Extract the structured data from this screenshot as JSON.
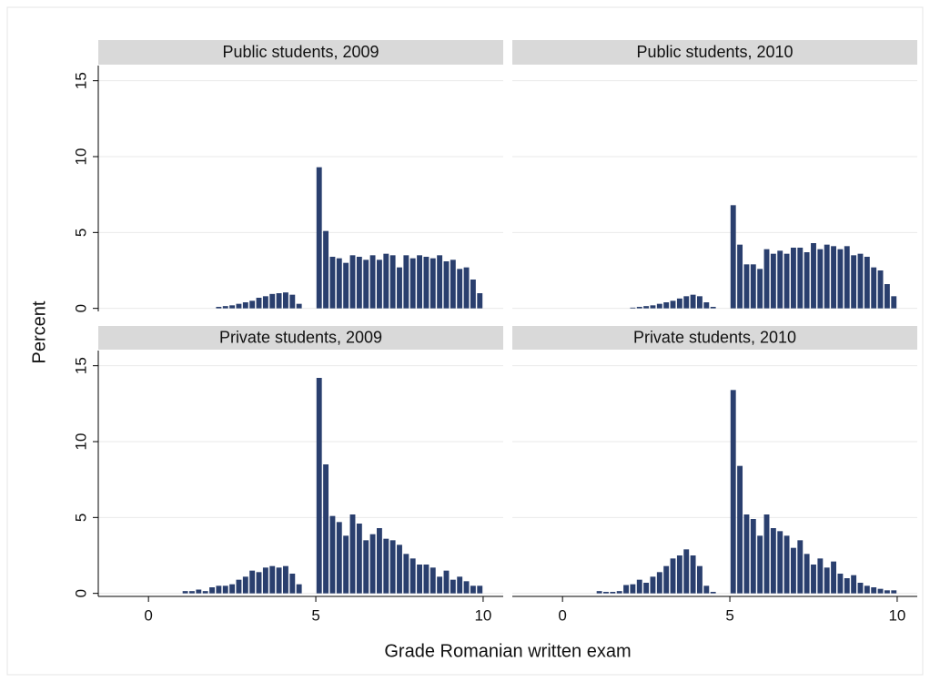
{
  "ylabel": "Percent",
  "xlabel": "Grade Romanian written exam",
  "chart_data": [
    {
      "type": "histogram",
      "title": "Public students, 2009",
      "color": "#2a3f6e",
      "bins": [
        1.0,
        1.2,
        1.4,
        1.6,
        1.8,
        2.0,
        2.2,
        2.4,
        2.6,
        2.8,
        3.0,
        3.2,
        3.4,
        3.6,
        3.8,
        4.0,
        4.2,
        4.4,
        4.6,
        4.8,
        5.0,
        5.2,
        5.4,
        5.6,
        5.8,
        6.0,
        6.2,
        6.4,
        6.6,
        6.8,
        7.0,
        7.2,
        7.4,
        7.6,
        7.8,
        8.0,
        8.2,
        8.4,
        8.6,
        8.8,
        9.0,
        9.2,
        9.4,
        9.6,
        9.8,
        10.0
      ],
      "values": [
        0,
        0,
        0,
        0,
        0,
        0.1,
        0.15,
        0.2,
        0.3,
        0.4,
        0.5,
        0.7,
        0.8,
        0.95,
        1.0,
        1.05,
        0.9,
        0.3,
        0,
        0,
        9.3,
        5.1,
        3.4,
        3.3,
        3.0,
        3.5,
        3.4,
        3.2,
        3.5,
        3.2,
        3.6,
        3.5,
        2.7,
        3.5,
        3.3,
        3.5,
        3.4,
        3.3,
        3.5,
        3.1,
        3.2,
        2.6,
        2.7,
        1.9,
        1.0
      ],
      "xlim": [
        -1.5,
        10.6
      ],
      "ylim": [
        -0.2,
        16
      ],
      "yticks": [
        0,
        5,
        10,
        15
      ],
      "ytick_labels": true,
      "grid": true
    },
    {
      "type": "histogram",
      "title": "Public students, 2010",
      "color": "#2a3f6e",
      "bins": [
        1.0,
        1.2,
        1.4,
        1.6,
        1.8,
        2.0,
        2.2,
        2.4,
        2.6,
        2.8,
        3.0,
        3.2,
        3.4,
        3.6,
        3.8,
        4.0,
        4.2,
        4.4,
        4.6,
        4.8,
        5.0,
        5.2,
        5.4,
        5.6,
        5.8,
        6.0,
        6.2,
        6.4,
        6.6,
        6.8,
        7.0,
        7.2,
        7.4,
        7.6,
        7.8,
        8.0,
        8.2,
        8.4,
        8.6,
        8.8,
        9.0,
        9.2,
        9.4,
        9.6,
        9.8,
        10.0
      ],
      "values": [
        0,
        0,
        0,
        0,
        0,
        0.05,
        0.1,
        0.15,
        0.2,
        0.3,
        0.4,
        0.5,
        0.65,
        0.8,
        0.9,
        0.8,
        0.4,
        0.1,
        0,
        0,
        6.8,
        4.2,
        2.9,
        2.9,
        2.6,
        3.9,
        3.6,
        3.8,
        3.6,
        4.0,
        4.0,
        3.7,
        4.3,
        3.9,
        4.2,
        4.1,
        3.9,
        4.1,
        3.5,
        3.6,
        3.4,
        2.7,
        2.5,
        1.6,
        0.8
      ],
      "xlim": [
        -1.5,
        10.6
      ],
      "ylim": [
        -0.2,
        16
      ],
      "yticks": [
        0,
        5,
        10,
        15
      ],
      "ytick_labels": false,
      "grid": true
    },
    {
      "type": "histogram",
      "title": "Private students, 2009",
      "color": "#2a3f6e",
      "bins": [
        1.0,
        1.2,
        1.4,
        1.6,
        1.8,
        2.0,
        2.2,
        2.4,
        2.6,
        2.8,
        3.0,
        3.2,
        3.4,
        3.6,
        3.8,
        4.0,
        4.2,
        4.4,
        4.6,
        4.8,
        5.0,
        5.2,
        5.4,
        5.6,
        5.8,
        6.0,
        6.2,
        6.4,
        6.6,
        6.8,
        7.0,
        7.2,
        7.4,
        7.6,
        7.8,
        8.0,
        8.2,
        8.4,
        8.6,
        8.8,
        9.0,
        9.2,
        9.4,
        9.6,
        9.8,
        10.0
      ],
      "values": [
        0.15,
        0.15,
        0.25,
        0.15,
        0.4,
        0.5,
        0.5,
        0.6,
        0.9,
        1.1,
        1.5,
        1.4,
        1.7,
        1.8,
        1.7,
        1.8,
        1.3,
        0.6,
        0,
        0,
        14.2,
        8.5,
        5.1,
        4.7,
        3.8,
        5.2,
        4.6,
        3.5,
        3.9,
        4.3,
        3.6,
        3.5,
        3.2,
        2.6,
        2.3,
        1.9,
        1.9,
        1.7,
        1.1,
        1.5,
        0.9,
        1.1,
        0.8,
        0.5,
        0.5
      ],
      "xlim": [
        -1.5,
        10.6
      ],
      "ylim": [
        -0.2,
        16
      ],
      "xticks": [
        0,
        5,
        10
      ],
      "yticks": [
        0,
        5,
        10,
        15
      ],
      "ytick_labels": true,
      "grid": true
    },
    {
      "type": "histogram",
      "title": "Private students, 2010",
      "color": "#2a3f6e",
      "bins": [
        1.0,
        1.2,
        1.4,
        1.6,
        1.8,
        2.0,
        2.2,
        2.4,
        2.6,
        2.8,
        3.0,
        3.2,
        3.4,
        3.6,
        3.8,
        4.0,
        4.2,
        4.4,
        4.6,
        4.8,
        5.0,
        5.2,
        5.4,
        5.6,
        5.8,
        6.0,
        6.2,
        6.4,
        6.6,
        6.8,
        7.0,
        7.2,
        7.4,
        7.6,
        7.8,
        8.0,
        8.2,
        8.4,
        8.6,
        8.8,
        9.0,
        9.2,
        9.4,
        9.6,
        9.8,
        10.0
      ],
      "values": [
        0.15,
        0.1,
        0.1,
        0.15,
        0.55,
        0.6,
        0.9,
        0.7,
        1.1,
        1.4,
        1.8,
        2.3,
        2.5,
        2.9,
        2.5,
        1.8,
        0.5,
        0.1,
        0,
        0,
        13.4,
        8.4,
        5.2,
        4.9,
        3.8,
        5.2,
        4.3,
        4.1,
        3.8,
        3.0,
        3.5,
        2.6,
        1.9,
        2.3,
        1.7,
        2.1,
        1.3,
        1.0,
        1.2,
        0.7,
        0.5,
        0.4,
        0.3,
        0.2,
        0.2
      ],
      "xlim": [
        -1.5,
        10.6
      ],
      "ylim": [
        -0.2,
        16
      ],
      "xticks": [
        0,
        5,
        10
      ],
      "yticks": [
        0,
        5,
        10,
        15
      ],
      "ytick_labels": false,
      "grid": true
    }
  ]
}
